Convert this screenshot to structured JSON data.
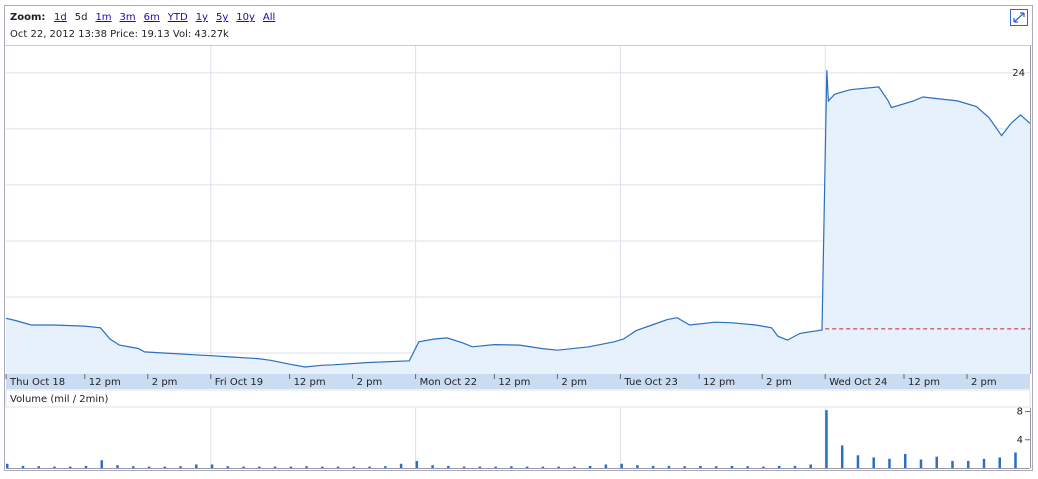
{
  "zoom": {
    "label": "Zoom:",
    "options": [
      "1d",
      "5d",
      "1m",
      "3m",
      "6m",
      "YTD",
      "1y",
      "5y",
      "10y",
      "All"
    ],
    "selected_index": 1
  },
  "info": "Oct 22, 2012 13:38 Price: 19.13 Vol: 43.27k",
  "chart_data": [
    {
      "type": "line",
      "color": "#2a6fc0",
      "x": [
        0,
        0.3,
        0.8,
        1.5,
        2.5,
        3.0,
        3.3,
        3.6,
        4.2,
        4.4,
        5,
        6.2,
        6.6,
        7.1,
        8,
        8.4,
        9,
        9.5,
        10,
        10.4,
        11.5,
        12.8,
        13.1,
        13.6,
        14,
        14.5,
        14.8,
        15.5,
        16.3,
        17,
        17.5,
        18.5,
        19.3,
        19.6,
        20,
        20.5,
        21,
        21.3,
        21.7,
        22.5,
        23,
        23.8,
        24.3,
        24.5,
        24.8,
        25.2,
        25.9,
        26.05,
        26.1,
        26.3,
        26.8,
        27.7,
        28.0,
        28.1,
        28.8,
        29.1,
        30.2,
        30.8,
        31.2,
        31.6,
        31.9,
        32.2,
        32.5
      ],
      "values": [
        19.62,
        19.58,
        19.5,
        19.5,
        19.48,
        19.45,
        19.25,
        19.14,
        19.08,
        19.02,
        19.0,
        18.96,
        18.95,
        18.93,
        18.9,
        18.87,
        18.8,
        18.75,
        18.78,
        18.79,
        18.83,
        18.86,
        19.2,
        19.25,
        19.27,
        19.18,
        19.11,
        19.15,
        19.14,
        19.08,
        19.05,
        19.11,
        19.2,
        19.25,
        19.4,
        19.5,
        19.6,
        19.63,
        19.5,
        19.55,
        19.54,
        19.5,
        19.45,
        19.3,
        19.23,
        19.35,
        19.41,
        24.05,
        23.5,
        23.62,
        23.7,
        23.75,
        23.5,
        23.38,
        23.5,
        23.57,
        23.5,
        23.4,
        23.2,
        22.88,
        23.1,
        23.25,
        23.1
      ],
      "xlim": [
        0,
        32.5
      ],
      "ylim": [
        18.625,
        24.48
      ],
      "yticks": [
        19,
        20,
        21,
        22,
        23,
        24
      ],
      "xticks": [
        {
          "value": 0,
          "label": "Thu Oct 18"
        },
        {
          "value": 2.5,
          "label": "12 pm"
        },
        {
          "value": 4.5,
          "label": "2 pm"
        },
        {
          "value": 6.5,
          "label": "Fri Oct 19"
        },
        {
          "value": 9,
          "label": "12 pm"
        },
        {
          "value": 11,
          "label": "2 pm"
        },
        {
          "value": 13,
          "label": "Mon Oct 22"
        },
        {
          "value": 15.5,
          "label": "12 pm"
        },
        {
          "value": 17.5,
          "label": "2 pm"
        },
        {
          "value": 19.5,
          "label": "Tue Oct 23"
        },
        {
          "value": 22,
          "label": "12 pm"
        },
        {
          "value": 24,
          "label": "2 pm"
        },
        {
          "value": 26,
          "label": "Wed Oct 24"
        },
        {
          "value": 28.5,
          "label": "12 pm"
        },
        {
          "value": 30.5,
          "label": "2 pm"
        }
      ],
      "xgrid": [
        6.5,
        13,
        19.5,
        26
      ],
      "grid": true,
      "reference_value": 19.43,
      "reference_x": [
        26,
        32.5
      ],
      "reference_color": "#cc2222"
    },
    {
      "type": "bar",
      "y_label": "Volume (mil / 2min)",
      "color": "#2a6fc0",
      "x": [
        0,
        0.5,
        1,
        1.5,
        2,
        2.5,
        3,
        3.5,
        4,
        4.5,
        5,
        5.5,
        6,
        6.5,
        7,
        7.5,
        8,
        8.5,
        9,
        9.5,
        10,
        10.5,
        11,
        11.5,
        12,
        12.5,
        13,
        13.5,
        14,
        14.5,
        15,
        15.5,
        16,
        16.5,
        17,
        17.5,
        18,
        18.5,
        19,
        19.5,
        20,
        20.5,
        21,
        21.5,
        22,
        22.5,
        23,
        23.5,
        24,
        24.5,
        25,
        25.5,
        26,
        26.5,
        27,
        27.5,
        28,
        28.5,
        29,
        29.5,
        30,
        30.5,
        31,
        31.5,
        32
      ],
      "values": [
        0.6,
        0.3,
        0.25,
        0.2,
        0.2,
        0.3,
        1.1,
        0.4,
        0.25,
        0.2,
        0.2,
        0.25,
        0.5,
        0.5,
        0.25,
        0.2,
        0.2,
        0.2,
        0.2,
        0.25,
        0.2,
        0.2,
        0.2,
        0.2,
        0.25,
        0.6,
        1.0,
        0.4,
        0.3,
        0.2,
        0.2,
        0.2,
        0.25,
        0.2,
        0.2,
        0.2,
        0.2,
        0.3,
        0.5,
        0.6,
        0.4,
        0.3,
        0.3,
        0.25,
        0.3,
        0.25,
        0.3,
        0.25,
        0.2,
        0.3,
        0.3,
        0.5,
        8.2,
        3.2,
        1.8,
        1.5,
        1.3,
        2.0,
        1.2,
        1.6,
        1.0,
        1.0,
        1.3,
        1.5,
        2.2
      ],
      "xlim": [
        0,
        32.5
      ],
      "ylim": [
        0,
        8.5
      ],
      "yticks": [
        4,
        8
      ],
      "xgrid": [
        6.5,
        13,
        19.5,
        26
      ]
    }
  ]
}
